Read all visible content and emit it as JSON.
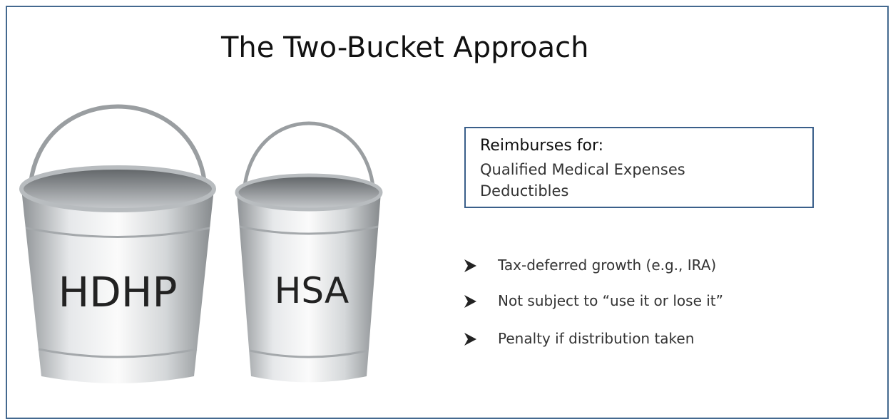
{
  "header": {
    "title": "The Two-Bucket Approach"
  },
  "buckets": [
    {
      "label": "HDHP"
    },
    {
      "label": "HSA"
    }
  ],
  "box": {
    "heading": "Reimburses for:",
    "items": [
      "Qualified Medical Expenses",
      "Deductibles"
    ]
  },
  "bullets": [
    "Tax-deferred growth (e.g., IRA)",
    "Not subject to “use it or lose it”",
    "Penalty if distribution taken"
  ]
}
